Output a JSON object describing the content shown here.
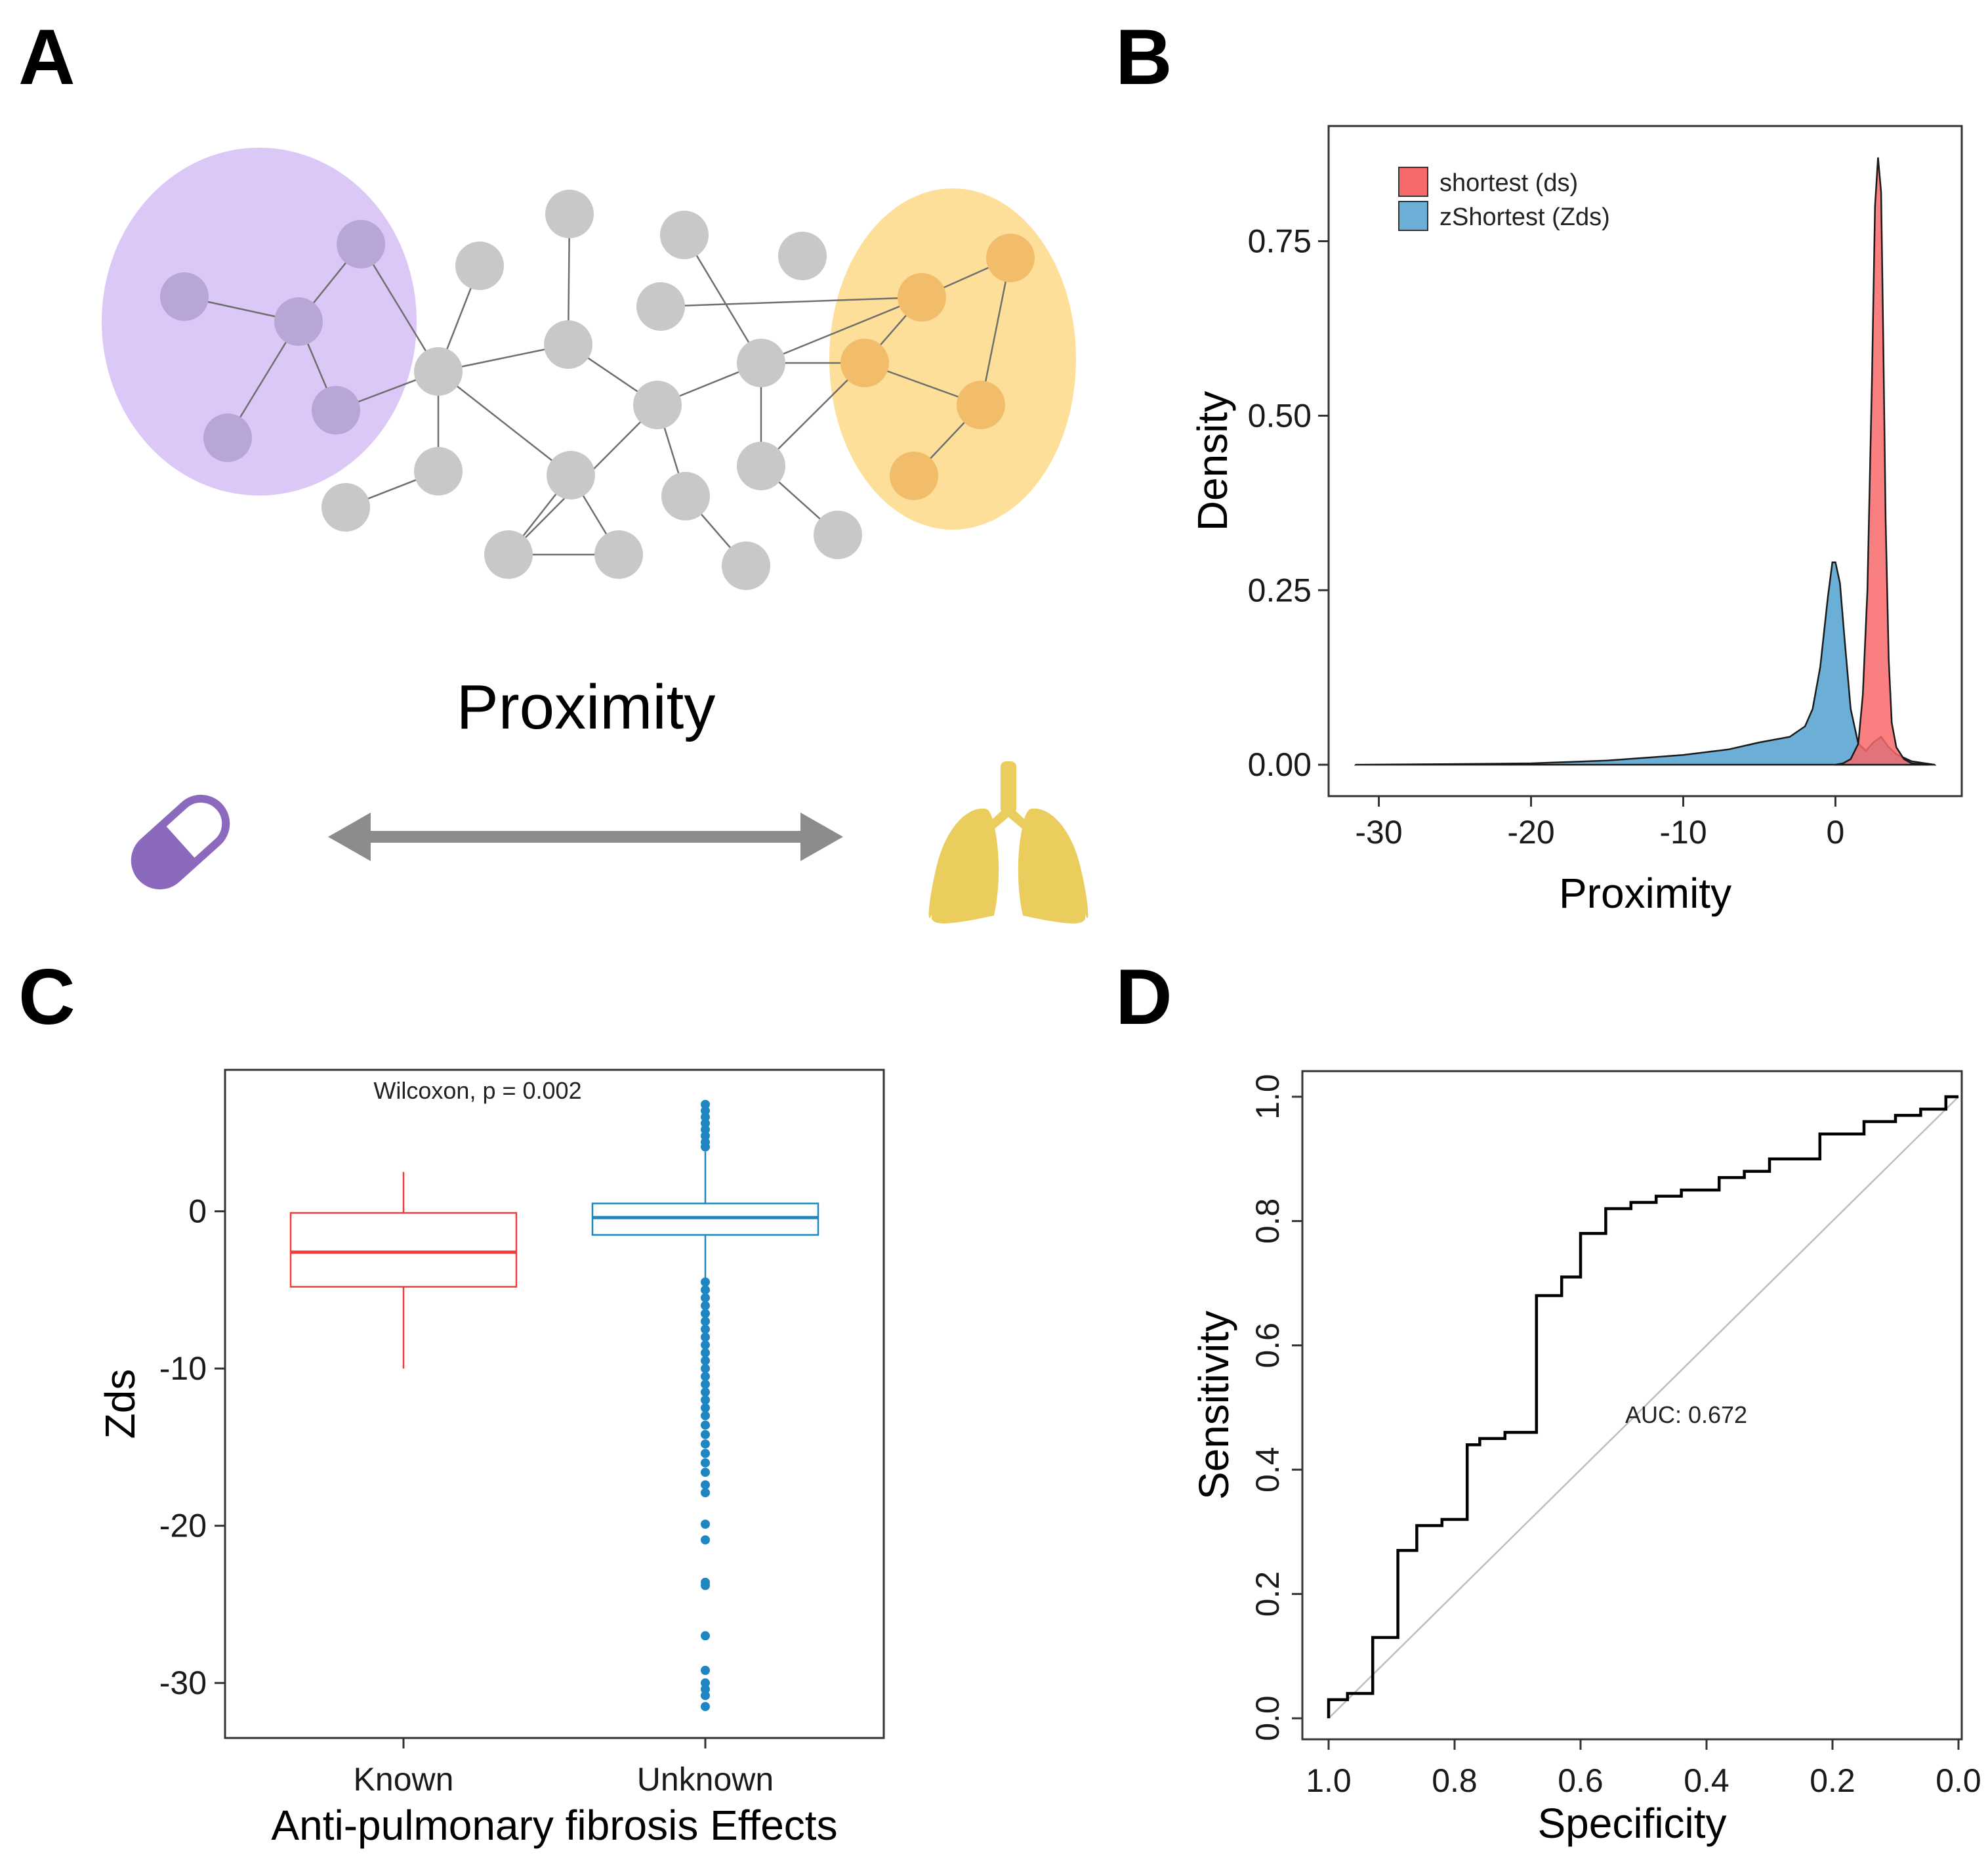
{
  "panels": {
    "a": {
      "letter": "A",
      "title": "Proximity",
      "drug_icon": "capsule-icon",
      "disease_icon": "lungs-icon",
      "colors": {
        "drug_module": "#dcc8f7",
        "disease_module": "#fddf99",
        "node": "#c8c8c8",
        "drug_node": "#b8a6d6",
        "disease_node": "#f2bd6b",
        "capsule": "#8b69bc",
        "lungs": "#ebcd5e",
        "arrow": "#8c8c8c"
      }
    },
    "b": {
      "letter": "B"
    },
    "c": {
      "letter": "C"
    },
    "d": {
      "letter": "D"
    }
  },
  "chart_data": [
    {
      "type": "area",
      "panel": "B",
      "xlabel": "Proximity",
      "ylabel": "Density",
      "xlim": [
        -33.3,
        8.3
      ],
      "ylim": [
        -0.045,
        0.915
      ],
      "xticks": [
        -30,
        -20,
        -10,
        0
      ],
      "xtick_labels": [
        "-30",
        "-20",
        "-10",
        "0"
      ],
      "yticks": [
        0.0,
        0.25,
        0.5,
        0.75
      ],
      "ytick_labels": [
        "0.00",
        "0.25",
        "0.50",
        "0.75"
      ],
      "legend_position": "top-left",
      "series": [
        {
          "name": "shortest (ds)",
          "color": "#f8696b",
          "x": [
            0,
            0.5,
            1,
            1.5,
            1.8,
            2.1,
            2.4,
            2.6,
            2.8,
            3.0,
            3.15,
            3.3,
            3.5,
            3.7,
            4.0,
            4.5,
            5.0,
            6
          ],
          "y": [
            0,
            0.002,
            0.008,
            0.03,
            0.1,
            0.25,
            0.55,
            0.8,
            0.87,
            0.82,
            0.6,
            0.35,
            0.15,
            0.06,
            0.025,
            0.008,
            0.002,
            0
          ]
        },
        {
          "name": "zShortest (Zds)",
          "color": "#6baed6",
          "x": [
            -31.5,
            -25,
            -20,
            -15,
            -10,
            -7,
            -5,
            -3,
            -2,
            -1.5,
            -1,
            -0.5,
            -0.2,
            0,
            0.3,
            0.6,
            1.0,
            1.5,
            2.0,
            2.5,
            3.0,
            3.5,
            4.0,
            5.0,
            6.5
          ],
          "y": [
            0,
            0.001,
            0.002,
            0.006,
            0.014,
            0.022,
            0.032,
            0.04,
            0.055,
            0.08,
            0.14,
            0.24,
            0.29,
            0.29,
            0.26,
            0.18,
            0.08,
            0.03,
            0.02,
            0.032,
            0.04,
            0.025,
            0.015,
            0.005,
            0
          ]
        }
      ]
    },
    {
      "type": "box",
      "panel": "C",
      "xlabel": "Anti-pulmonary fibrosis Effects",
      "ylabel": "Zds",
      "annotation": "Wilcoxon, p = 0.002",
      "categories": [
        "Known",
        "Unknown"
      ],
      "ylim": [
        -33.5,
        9
      ],
      "yticks": [
        0,
        -10,
        -20,
        -30
      ],
      "ytick_labels": [
        "0",
        "-10",
        "-20",
        "-30"
      ],
      "boxes": [
        {
          "name": "Known",
          "color": "#f23b3b",
          "whisker_low": -10,
          "q1": -4.8,
          "median": -2.6,
          "q3": -0.1,
          "whisker_high": 2.5,
          "outliers": []
        },
        {
          "name": "Unknown",
          "color": "#1f86c1",
          "whisker_low": -4.3,
          "q1": -1.5,
          "median": -0.4,
          "q3": 0.5,
          "whisker_high": 3.8,
          "outliers": [
            6.8,
            6.4,
            6.0,
            5.6,
            5.2,
            4.8,
            4.4,
            4.1,
            -4.5,
            -5.0,
            -5.5,
            -6.0,
            -6.5,
            -7.0,
            -7.5,
            -8.0,
            -8.5,
            -9.0,
            -9.5,
            -10.0,
            -10.5,
            -11.0,
            -11.5,
            -12.0,
            -12.5,
            -13.0,
            -13.6,
            -14.2,
            -14.8,
            -15.4,
            -16.0,
            -16.6,
            -17.4,
            -17.9,
            -19.9,
            -20.9,
            -23.6,
            -23.8,
            -27.0,
            -29.2,
            -30.0,
            -30.4,
            -30.8,
            -31.5
          ]
        }
      ]
    },
    {
      "type": "line",
      "panel": "D",
      "xlabel": "Specificity",
      "ylabel": "Sensitivity",
      "annotation": "AUC: 0.672",
      "xlim_reversed": [
        1.0,
        0.0
      ],
      "ylim": [
        0,
        1.0
      ],
      "xticks": [
        1.0,
        0.8,
        0.6,
        0.4,
        0.2,
        0.0
      ],
      "xtick_labels": [
        "1.0",
        "0.8",
        "0.6",
        "0.4",
        "0.2",
        "0.0"
      ],
      "yticks": [
        0.0,
        0.2,
        0.4,
        0.6,
        0.8,
        1.0
      ],
      "ytick_labels": [
        "0.0",
        "0.2",
        "0.4",
        "0.6",
        "0.8",
        "1.0"
      ],
      "series": [
        {
          "name": "ROC",
          "color": "#000000",
          "specificity": [
            1.0,
            1.0,
            0.97,
            0.97,
            0.93,
            0.93,
            0.89,
            0.89,
            0.86,
            0.86,
            0.82,
            0.82,
            0.78,
            0.78,
            0.76,
            0.76,
            0.72,
            0.72,
            0.67,
            0.67,
            0.63,
            0.63,
            0.6,
            0.6,
            0.56,
            0.56,
            0.52,
            0.52,
            0.48,
            0.48,
            0.44,
            0.44,
            0.38,
            0.38,
            0.34,
            0.34,
            0.3,
            0.3,
            0.22,
            0.22,
            0.15,
            0.15,
            0.1,
            0.1,
            0.06,
            0.06,
            0.02,
            0.02,
            0.0
          ],
          "sensitivity": [
            0.0,
            0.03,
            0.03,
            0.04,
            0.04,
            0.13,
            0.13,
            0.27,
            0.27,
            0.31,
            0.31,
            0.32,
            0.32,
            0.44,
            0.44,
            0.45,
            0.45,
            0.46,
            0.46,
            0.68,
            0.68,
            0.71,
            0.71,
            0.78,
            0.78,
            0.82,
            0.82,
            0.83,
            0.83,
            0.84,
            0.84,
            0.85,
            0.85,
            0.87,
            0.87,
            0.88,
            0.88,
            0.9,
            0.9,
            0.94,
            0.94,
            0.96,
            0.96,
            0.97,
            0.97,
            0.98,
            0.98,
            1.0,
            1.0
          ]
        }
      ]
    }
  ]
}
